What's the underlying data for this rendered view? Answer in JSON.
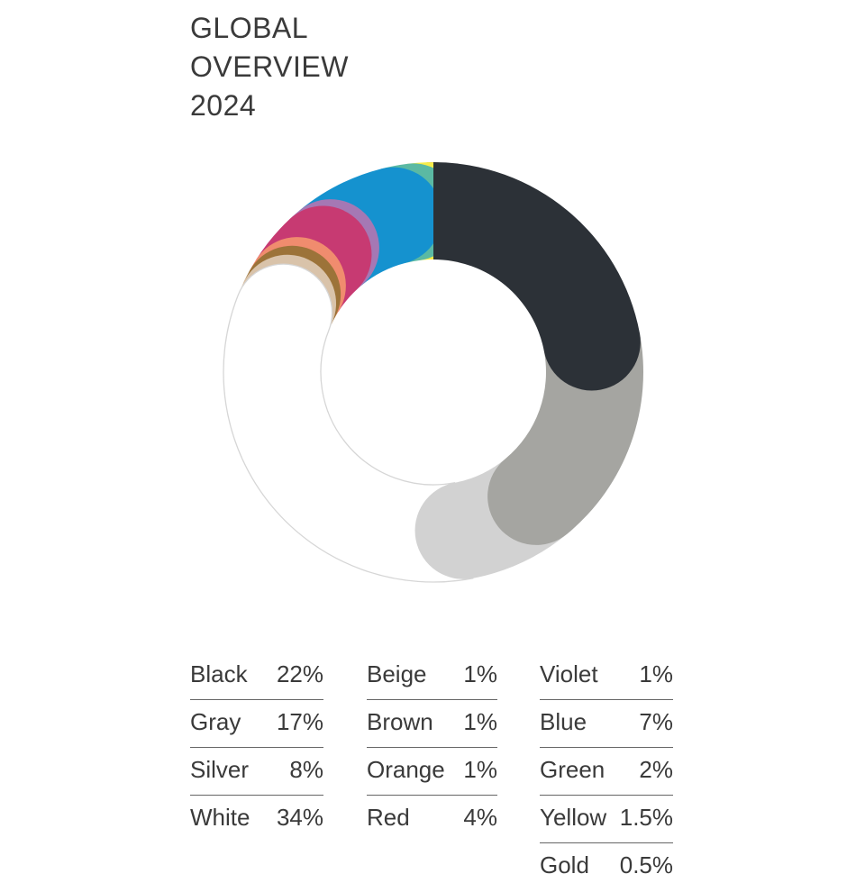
{
  "title_lines": [
    "GLOBAL",
    "OVERVIEW",
    "2024"
  ],
  "chart_data": {
    "type": "pie",
    "variant": "donut",
    "title": "GLOBAL OVERVIEW 2024",
    "unit": "%",
    "categories": [
      "Black",
      "Gray",
      "Silver",
      "White",
      "Beige",
      "Brown",
      "Orange",
      "Red",
      "Violet",
      "Blue",
      "Green",
      "Yellow",
      "Gold"
    ],
    "labels": [
      "22%",
      "17%",
      "8%",
      "34%",
      "1%",
      "1%",
      "1%",
      "4%",
      "1%",
      "7%",
      "2%",
      "1.5%",
      "0.5%"
    ],
    "values": [
      22,
      17,
      8,
      34,
      1,
      1,
      1,
      4,
      1,
      7,
      2,
      1.5,
      0.5
    ],
    "colors": [
      "#2c3137",
      "#a5a5a1",
      "#d2d2d2",
      "#ffffff",
      "#d9c3aa",
      "#9c7339",
      "#f08c6e",
      "#c73a72",
      "#a578b4",
      "#1592cf",
      "#5bb9a3",
      "#f7ec4a",
      "#d9a441"
    ],
    "legend_placement": "bottom",
    "legend_columns": [
      [
        0,
        1,
        2,
        3
      ],
      [
        4,
        5,
        6,
        7
      ],
      [
        8,
        9,
        10,
        11,
        12
      ]
    ]
  }
}
